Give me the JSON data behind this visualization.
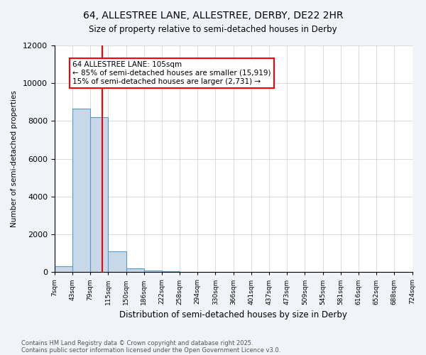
{
  "title_line1": "64, ALLESTREE LANE, ALLESTREE, DERBY, DE22 2HR",
  "title_line2": "Size of property relative to semi-detached houses in Derby",
  "xlabel": "Distribution of semi-detached houses by size in Derby",
  "ylabel": "Number of semi-detached properties",
  "bin_labels": [
    "7sqm",
    "43sqm",
    "79sqm",
    "115sqm",
    "150sqm",
    "186sqm",
    "222sqm",
    "258sqm",
    "294sqm",
    "330sqm",
    "366sqm",
    "401sqm",
    "437sqm",
    "473sqm",
    "509sqm",
    "545sqm",
    "581sqm",
    "616sqm",
    "652sqm",
    "688sqm",
    "724sqm"
  ],
  "bar_values": [
    300,
    8650,
    8200,
    1100,
    200,
    100,
    30,
    0,
    0,
    0,
    0,
    0,
    0,
    0,
    0,
    0,
    0,
    0,
    0,
    0
  ],
  "bar_color": "#c8d8e8",
  "bar_edge_color": "#5a9ac8",
  "property_line_x": 2.65,
  "annotation_text": "64 ALLESTREE LANE: 105sqm\n← 85% of semi-detached houses are smaller (15,919)\n15% of semi-detached houses are larger (2,731) →",
  "annotation_box_color": "white",
  "annotation_box_edge_color": "red",
  "vline_color": "red",
  "ylim": [
    0,
    12000
  ],
  "yticks": [
    0,
    2000,
    4000,
    6000,
    8000,
    10000,
    12000
  ],
  "footer_line1": "Contains HM Land Registry data © Crown copyright and database right 2025.",
  "footer_line2": "Contains public sector information licensed under the Open Government Licence v3.0.",
  "background_color": "#f0f4f8",
  "plot_background": "white",
  "grid_color": "#cccccc"
}
